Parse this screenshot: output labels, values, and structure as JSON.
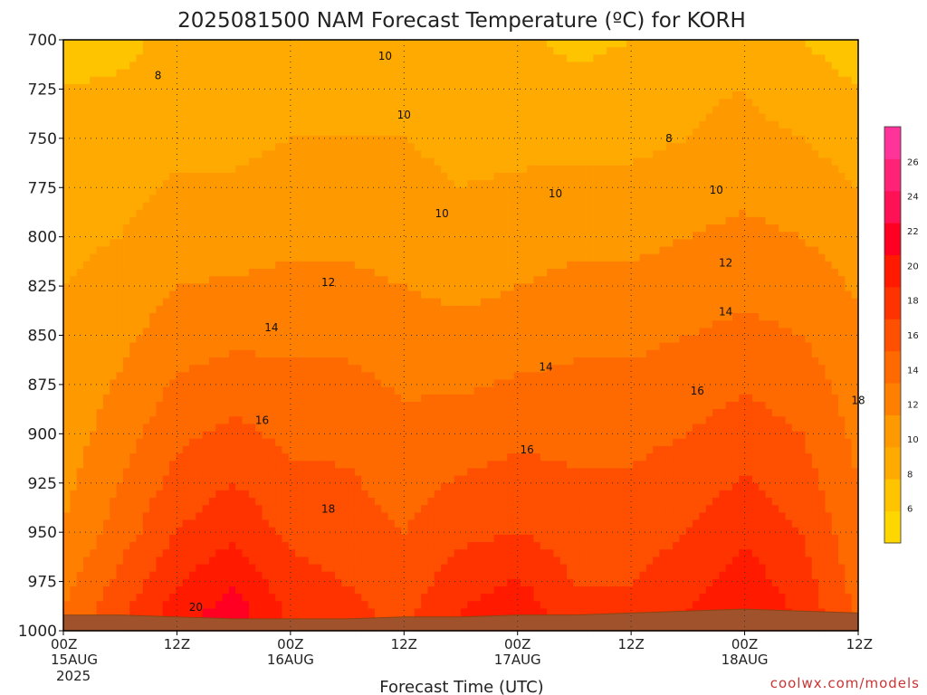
{
  "chart_data": {
    "type": "heatmap",
    "title": "2025081500 NAM Forecast Temperature (ºC) for KORH",
    "xlabel": "Forecast Time (UTC)",
    "ylabel": "",
    "x_ticks": [
      {
        "label": "00Z",
        "sub": "15AUG",
        "sub2": "2025",
        "hour": 0
      },
      {
        "label": "12Z",
        "sub": "",
        "sub2": "",
        "hour": 12
      },
      {
        "label": "00Z",
        "sub": "16AUG",
        "sub2": "",
        "hour": 24
      },
      {
        "label": "12Z",
        "sub": "",
        "sub2": "",
        "hour": 36
      },
      {
        "label": "00Z",
        "sub": "17AUG",
        "sub2": "",
        "hour": 48
      },
      {
        "label": "12Z",
        "sub": "",
        "sub2": "",
        "hour": 60
      },
      {
        "label": "00Z",
        "sub": "18AUG",
        "sub2": "",
        "hour": 72
      },
      {
        "label": "12Z",
        "sub": "",
        "sub2": "",
        "hour": 84
      }
    ],
    "xlim": [
      0,
      84
    ],
    "y_ticks": [
      700,
      725,
      750,
      775,
      800,
      825,
      850,
      875,
      900,
      925,
      950,
      975,
      1000
    ],
    "ylim": [
      700,
      1000
    ],
    "y_inverted": true,
    "grid": true,
    "colorbar": {
      "ticks": [
        6,
        8,
        10,
        12,
        14,
        16,
        18,
        20,
        22,
        24,
        26
      ],
      "range": [
        4,
        28
      ],
      "colors": [
        "#ffd700",
        "#ffc400",
        "#ffaa00",
        "#ff9900",
        "#ff8000",
        "#ff6a00",
        "#ff4f00",
        "#ff3300",
        "#ff1a00",
        "#ff0022",
        "#ff1155",
        "#ff2277",
        "#ff3399"
      ]
    },
    "contour_labels": [
      "8",
      "10",
      "12",
      "14",
      "16",
      "18",
      "20"
    ],
    "columns_hours": [
      0,
      6,
      12,
      18,
      24,
      30,
      36,
      42,
      48,
      54,
      60,
      66,
      72,
      78,
      84
    ],
    "levels_hpa": [
      700,
      750,
      800,
      850,
      900,
      950,
      990
    ],
    "temperature_c": [
      [
        7.5,
        8.5,
        9.5,
        10.5,
        11.0,
        12.0,
        14.0
      ],
      [
        7.5,
        9.0,
        10.0,
        11.5,
        13.0,
        15.0,
        17.5
      ],
      [
        8.5,
        9.5,
        11.0,
        13.0,
        15.5,
        18.0,
        21.0
      ],
      [
        9.0,
        9.5,
        11.0,
        13.5,
        16.5,
        19.5,
        23.0
      ],
      [
        9.5,
        10.0,
        11.5,
        13.5,
        15.5,
        17.5,
        19.5
      ],
      [
        10.0,
        10.0,
        11.5,
        13.5,
        15.5,
        17.0,
        18.5
      ],
      [
        9.5,
        10.0,
        11.0,
        13.0,
        14.5,
        16.0,
        17.5
      ],
      [
        8.0,
        9.5,
        10.5,
        12.5,
        15.0,
        17.5,
        20.0
      ],
      [
        8.5,
        9.5,
        11.0,
        13.0,
        15.5,
        18.0,
        21.5
      ],
      [
        7.5,
        9.5,
        11.5,
        13.5,
        15.5,
        17.0,
        18.5
      ],
      [
        8.0,
        9.5,
        11.5,
        13.5,
        15.5,
        17.0,
        18.5
      ],
      [
        9.5,
        10.0,
        12.0,
        14.0,
        16.0,
        18.0,
        20.0
      ],
      [
        9.5,
        10.5,
        12.5,
        14.5,
        17.0,
        19.5,
        22.0
      ],
      [
        8.0,
        10.0,
        12.0,
        14.0,
        16.0,
        18.0,
        19.5
      ],
      [
        7.0,
        9.0,
        11.0,
        12.5,
        13.5,
        14.5,
        15.5
      ]
    ],
    "surface_pressure_hpa": [
      992,
      992,
      993,
      994,
      994,
      994,
      993,
      993,
      992,
      992,
      991,
      990,
      989,
      990,
      991
    ]
  },
  "credit": "coolwx.com/models"
}
